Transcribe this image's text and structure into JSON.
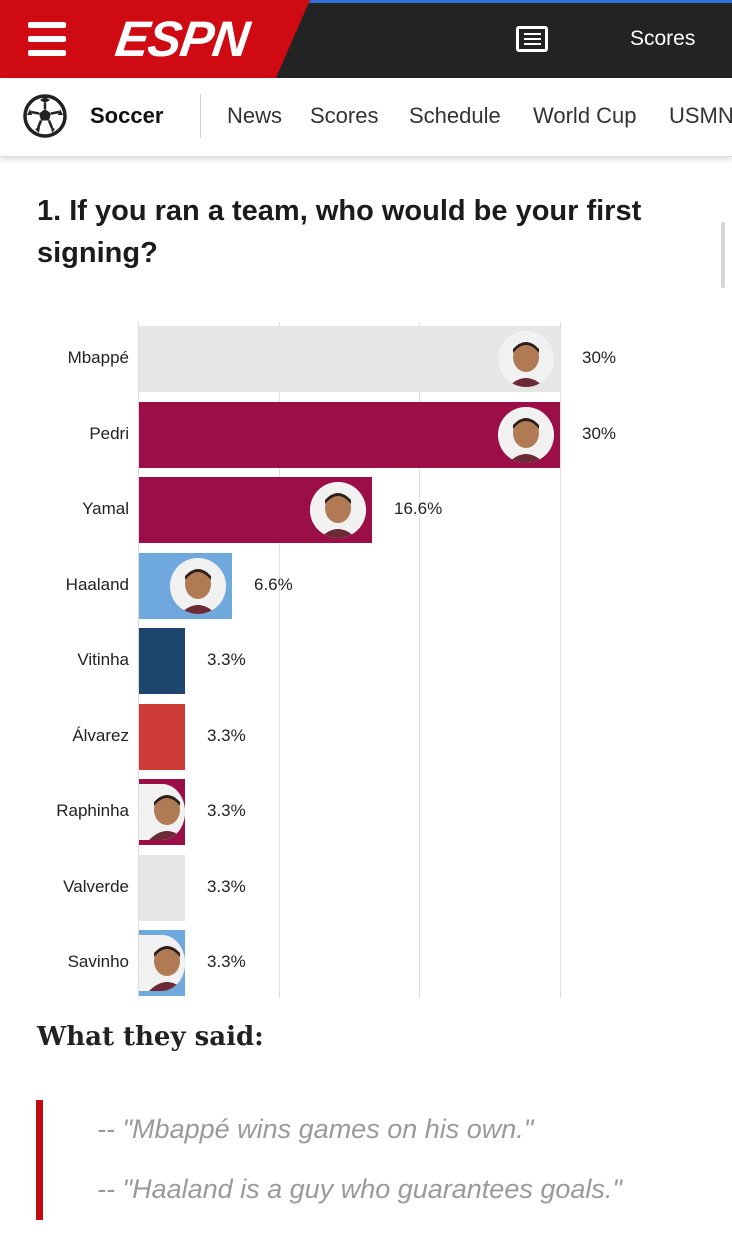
{
  "header": {
    "logo": "ESPN",
    "scores_label": "Scores",
    "colors": {
      "brand_red": "#d00a12",
      "bar_bg": "#222325"
    }
  },
  "subnav": {
    "section": "Soccer",
    "items": [
      "News",
      "Scores",
      "Schedule",
      "World Cup",
      "USMN"
    ]
  },
  "question": "1. If you ran a team, who would be your first signing?",
  "chart_data": {
    "type": "bar",
    "orientation": "horizontal",
    "categories": [
      "Mbappé",
      "Pedri",
      "Yamal",
      "Haaland",
      "Vitinha",
      "Álvarez",
      "Raphinha",
      "Valverde",
      "Savinho"
    ],
    "values": [
      30,
      30,
      16.6,
      6.6,
      3.3,
      3.3,
      3.3,
      3.3,
      3.3
    ],
    "value_labels": [
      "30%",
      "30%",
      "16.6%",
      "6.6%",
      "3.3%",
      "3.3%",
      "3.3%",
      "3.3%",
      "3.3%"
    ],
    "colors": [
      "#e6e6e6",
      "#9b0e47",
      "#9b0e47",
      "#6fa8dc",
      "#1e456d",
      "#cc3b35",
      "#9b0e47",
      "#e6e6e6",
      "#6fa8dc"
    ],
    "has_avatar": [
      true,
      true,
      true,
      true,
      false,
      false,
      true,
      false,
      true
    ],
    "xlim": [
      0,
      30
    ],
    "grid": true,
    "title": "",
    "xlabel": "",
    "ylabel": ""
  },
  "said": {
    "heading": "What they said:",
    "quotes": [
      "-- \"Mbappé wins games on his own.\"",
      "-- \"Haaland is a guy who guarantees goals.\""
    ]
  }
}
